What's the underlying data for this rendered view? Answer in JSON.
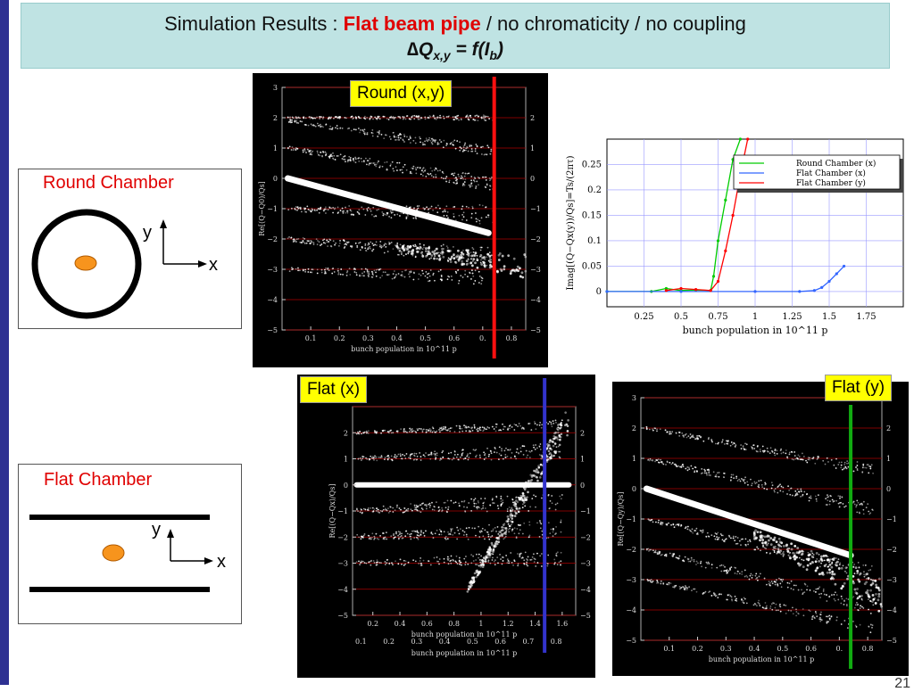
{
  "title": {
    "prefix": "Simulation Results  : ",
    "highlight": "Flat beam pipe",
    "suffix": " / no chromaticity / no coupling",
    "line2_main": "∆Q",
    "line2_sub": "x,y",
    "line2_eq": "  = f(I",
    "line2_sub2": "b",
    "line2_end": ")"
  },
  "round_box": {
    "caption": "Round Chamber",
    "y_label": "y",
    "x_label": "x"
  },
  "flat_box": {
    "caption": "Flat Chamber",
    "y_label": "y",
    "x_label": "x"
  },
  "labels": {
    "round_xy": "Round (x,y)",
    "flat_x": "Flat (x)",
    "flat_y": "Flat (y)"
  },
  "page_number": "21",
  "colors": {
    "title_bg": "#bfe3e3",
    "accent_red": "#e00000",
    "tag_yellow": "#ffff00",
    "left_bar": "#2e3192"
  },
  "chart_data": [
    {
      "id": "round-spectrum",
      "type": "heatmap",
      "xlabel": "bunch population in 10^11 p",
      "ylabel": "Re[(Q−Q0)/Qs]",
      "xlim": [
        0,
        0.85
      ],
      "ylim": [
        -5,
        3
      ],
      "x_ticks": [
        "0.1",
        "0.2",
        "0.3",
        "0.4",
        "0.5",
        "0.6",
        "0.",
        "0.8"
      ],
      "y_ticks": [
        "3",
        "2",
        "1",
        "0",
        "−1",
        "−2",
        "−3",
        "−4",
        "−5"
      ],
      "right_ticks": [
        "2",
        "1",
        "0",
        "−1",
        "−2",
        "−3",
        "−4",
        "−5"
      ],
      "marker_x": 0.74
    },
    {
      "id": "growth-rate",
      "type": "line",
      "xlabel": "bunch population in 10^11 p",
      "ylabel": "Imag[(Q−Qx(y))/Qs]=Ts/(2πτ)",
      "xlim": [
        0,
        2.0
      ],
      "ylim": [
        -0.03,
        0.3
      ],
      "x_ticks": [
        "0.25",
        "0.5",
        "0.75",
        "1",
        "1.25",
        "1.5",
        "1.75"
      ],
      "y_ticks": [
        "0",
        "0.05",
        "0.1",
        "0.15",
        "0.2",
        "0.25"
      ],
      "legend": "top-right",
      "series": [
        {
          "name": "Round Chamber (x)",
          "color": "#00cc00",
          "x": [
            0,
            0.3,
            0.4,
            0.5,
            0.6,
            0.7,
            0.72,
            0.75,
            0.8,
            0.85,
            0.9
          ],
          "y": [
            0,
            0,
            0.006,
            0.002,
            0.003,
            0.002,
            0.03,
            0.1,
            0.18,
            0.26,
            0.3
          ]
        },
        {
          "name": "Flat Chamber (x)",
          "color": "#3366ff",
          "x": [
            0,
            0.5,
            1.0,
            1.3,
            1.4,
            1.45,
            1.5,
            1.55,
            1.6
          ],
          "y": [
            0,
            0,
            0,
            0,
            0.002,
            0.008,
            0.02,
            0.035,
            0.05
          ]
        },
        {
          "name": "Flat Chamber (y)",
          "color": "#ff0000",
          "x": [
            0.4,
            0.5,
            0.6,
            0.7,
            0.75,
            0.8,
            0.85,
            0.9,
            0.95
          ],
          "y": [
            0.002,
            0.006,
            0.004,
            0.002,
            0.02,
            0.08,
            0.15,
            0.23,
            0.3
          ]
        }
      ]
    },
    {
      "id": "flat-x-spectrum",
      "type": "heatmap",
      "xlabel": "bunch population in 10^11 p",
      "ylabel": "Re[(Q−Qx)/Qs]",
      "xlim": [
        0.05,
        1.7
      ],
      "ylim": [
        -5,
        3
      ],
      "x_ticks": [
        "0.2",
        "0.4",
        "0.6",
        "0.8",
        "1",
        "1.2",
        "1.4",
        "1.6"
      ],
      "x_ticks_secondary": [
        "0.1",
        "0.2",
        "0.3",
        "0.4",
        "0.5",
        "0.6",
        "0.7",
        "0.8"
      ],
      "y_ticks": [
        "2",
        "1",
        "0",
        "−1",
        "−2",
        "−3",
        "−4",
        "−5"
      ],
      "marker_x": 1.47
    },
    {
      "id": "flat-y-spectrum",
      "type": "heatmap",
      "xlabel": "bunch population in 10^11 p",
      "ylabel": "Re[(Q−Qy)/Qs]",
      "xlim": [
        0,
        0.85
      ],
      "ylim": [
        -5,
        3
      ],
      "x_ticks": [
        "0.1",
        "0.2",
        "0.3",
        "0.4",
        "0.5",
        "0.6",
        "0.",
        "0.8"
      ],
      "y_ticks": [
        "3",
        "2",
        "1",
        "0",
        "−1",
        "−2",
        "−3",
        "−4",
        "−5"
      ],
      "marker_x": 0.74
    }
  ]
}
